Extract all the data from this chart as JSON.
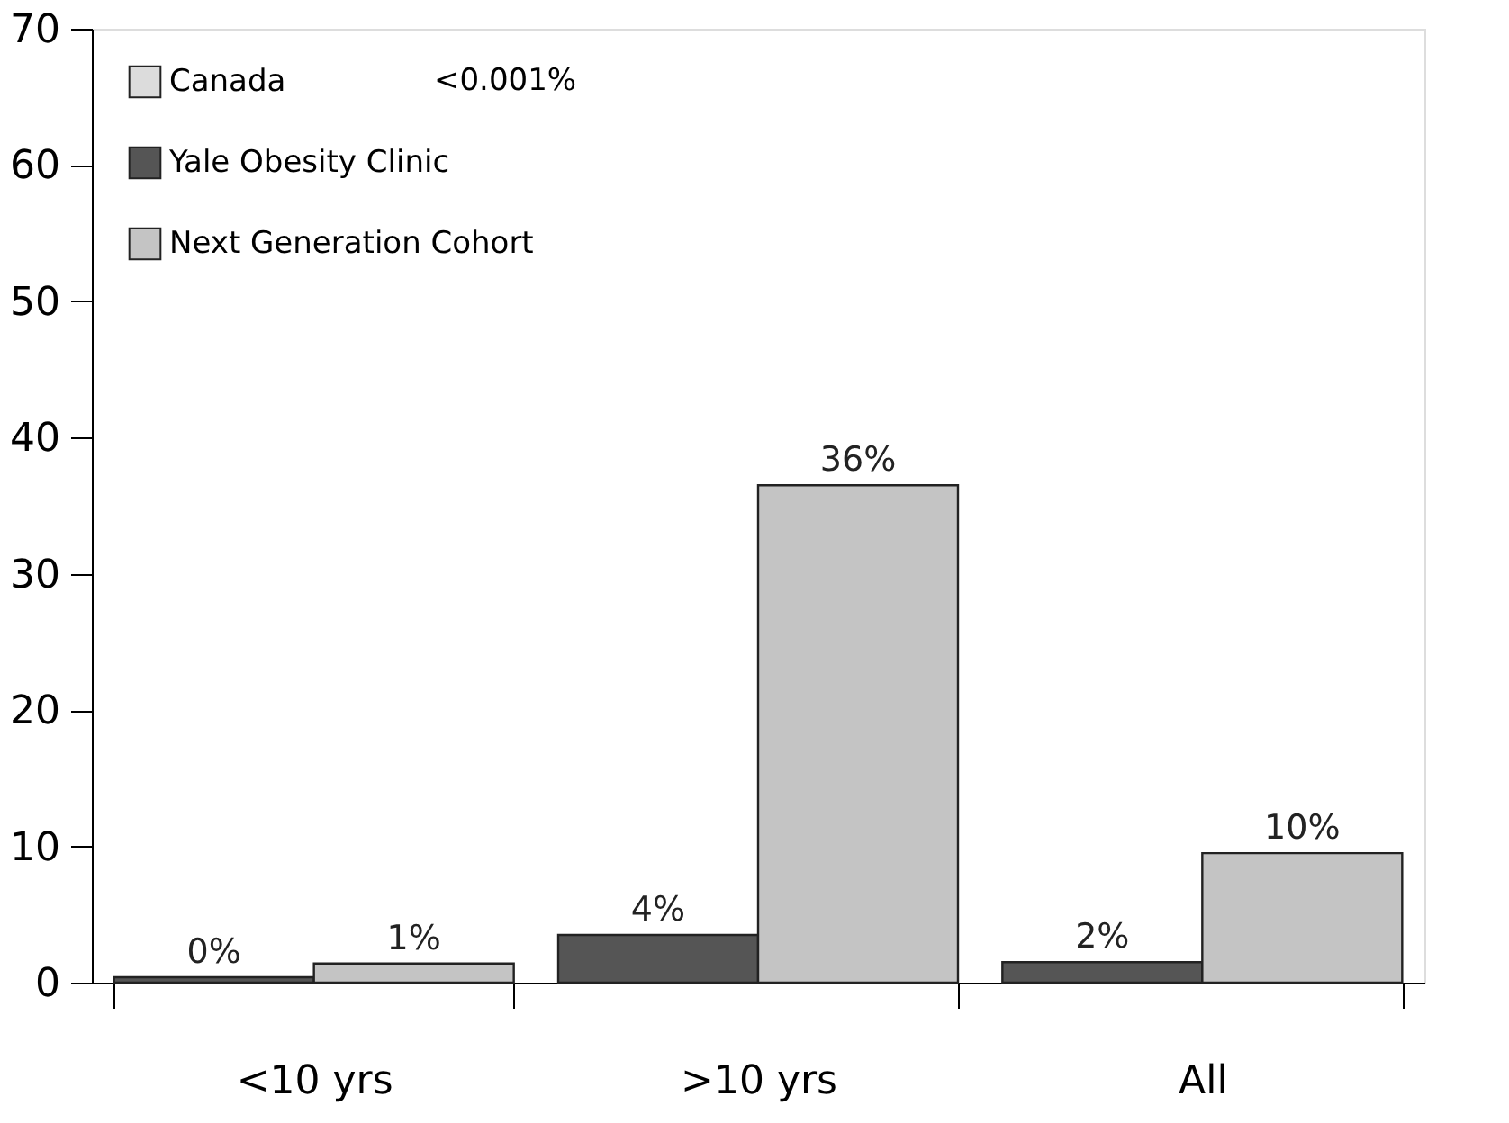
{
  "chart_data": {
    "type": "bar",
    "categories": [
      "<10 yrs",
      ">10 yrs",
      "All"
    ],
    "series": [
      {
        "name": "Canada",
        "color": "#dcdcdc",
        "values": [
          null,
          null,
          null
        ],
        "value_labels": [
          null,
          null,
          null
        ]
      },
      {
        "name": "Yale Obesity Clinic",
        "color": "#555555",
        "values": [
          0.4,
          3.5,
          1.5
        ],
        "value_labels": [
          "0%",
          "4%",
          "2%"
        ]
      },
      {
        "name": "Next Generation Cohort",
        "color": "#c4c4c4",
        "values": [
          1.4,
          36.5,
          9.5
        ],
        "value_labels": [
          "1%",
          "36%",
          "10%"
        ]
      }
    ],
    "annotations": [
      "<0.001%"
    ],
    "ylim": [
      0,
      70
    ],
    "yticks": [
      0,
      10,
      20,
      30,
      40,
      50,
      60,
      70
    ],
    "grid": false,
    "legend": "top left"
  }
}
